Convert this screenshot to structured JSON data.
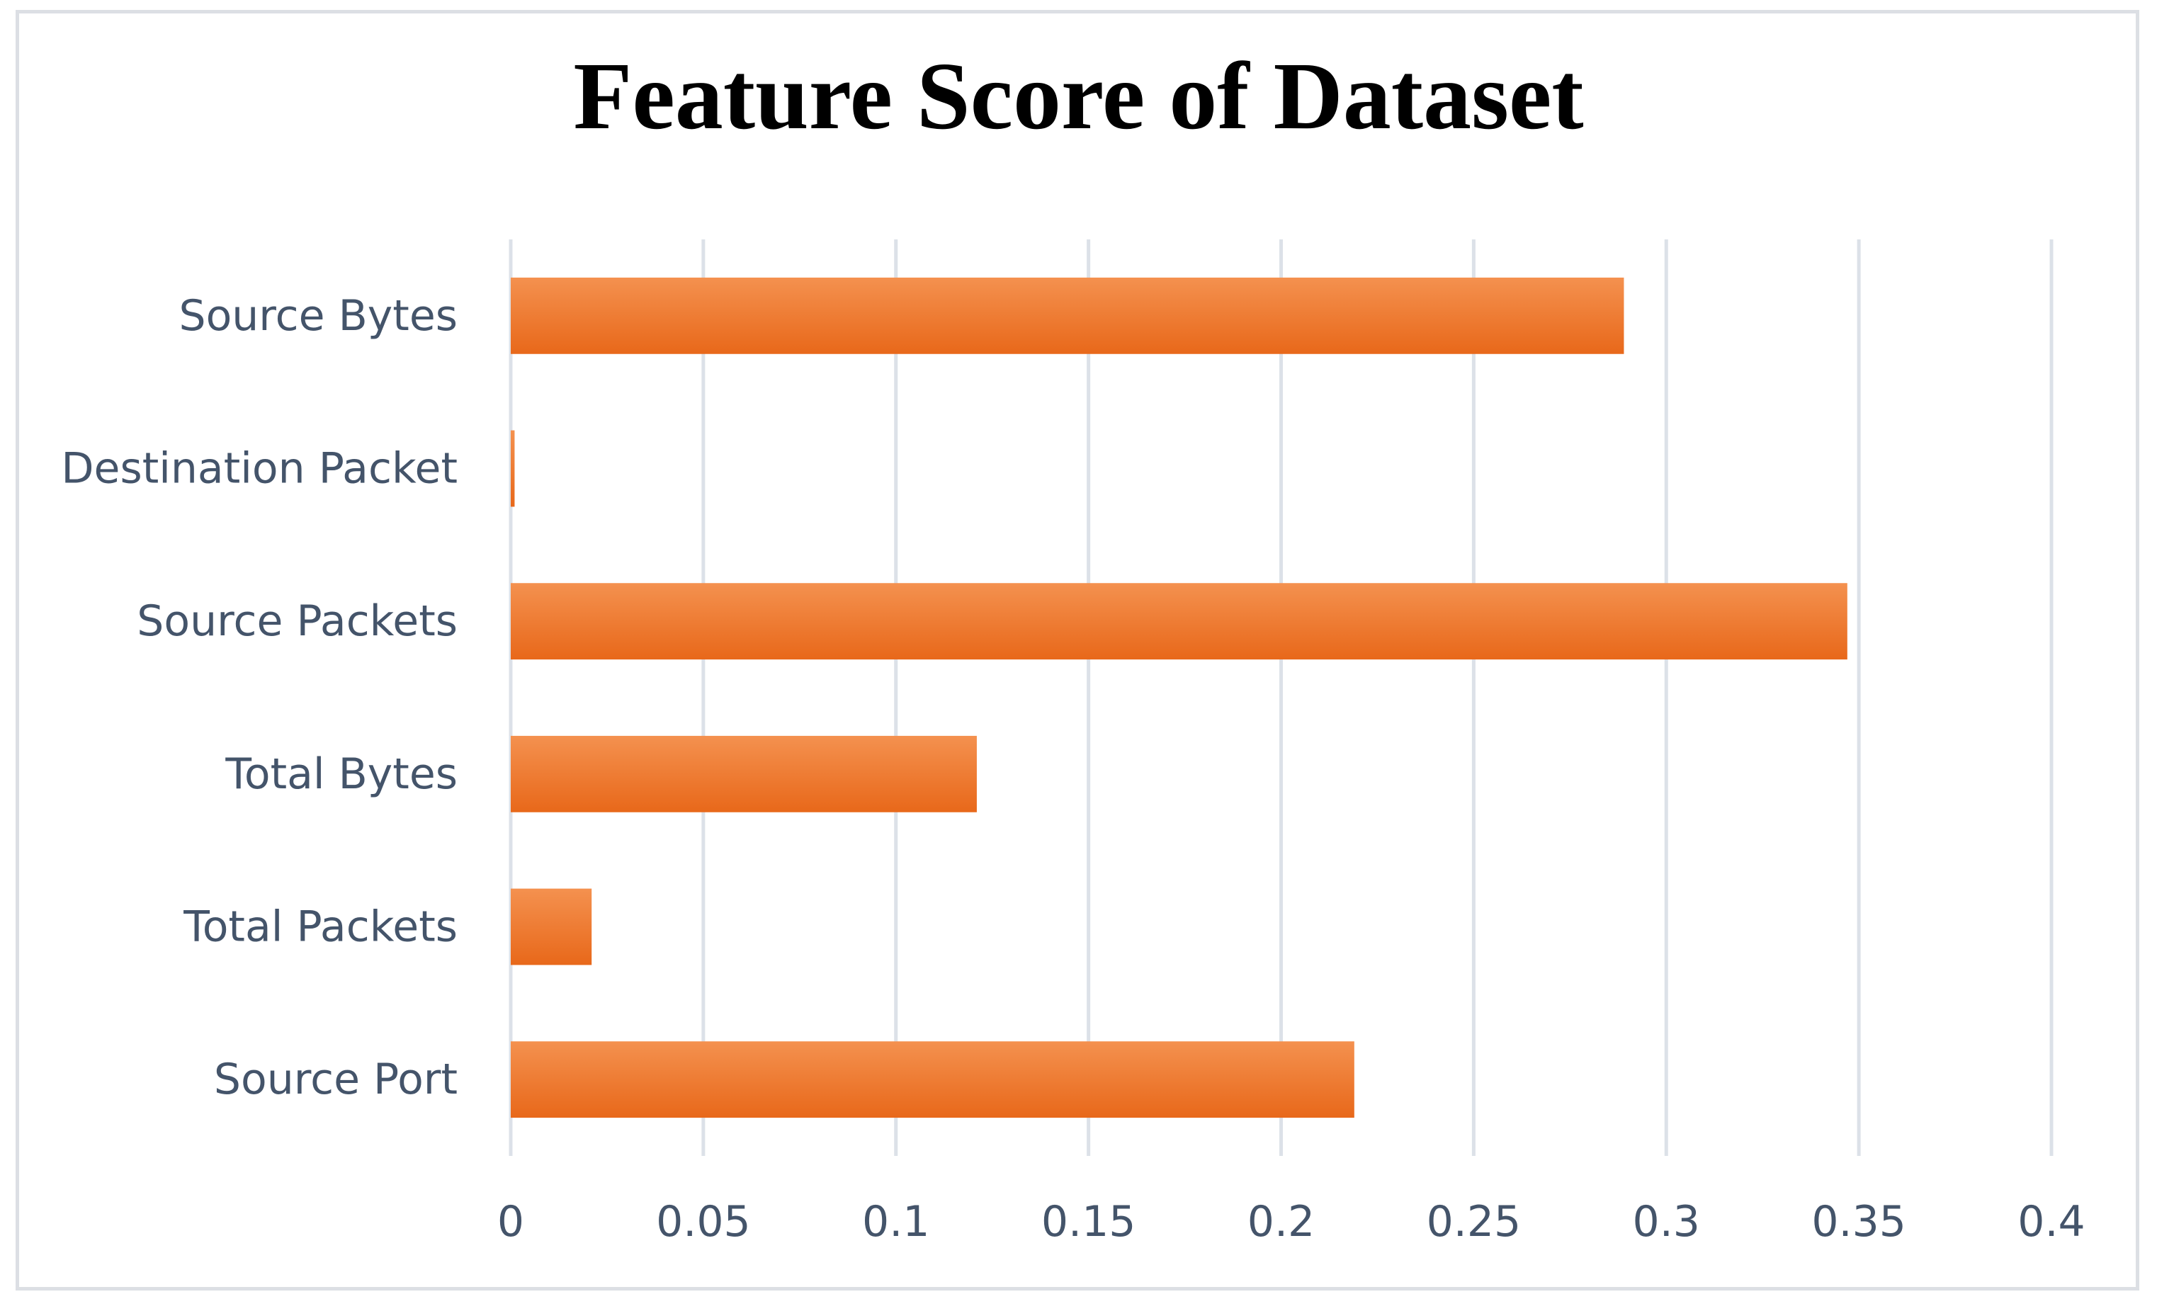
{
  "chart_data": {
    "type": "bar",
    "orientation": "horizontal",
    "title": "Feature Score of Dataset",
    "xlabel": "",
    "ylabel": "",
    "categories": [
      "Source Bytes",
      "Destination Packet",
      "Source Packets",
      "Total Bytes",
      "Total Packets",
      "Source Port"
    ],
    "values": [
      0.289,
      0.001,
      0.347,
      0.121,
      0.021,
      0.219
    ],
    "xlim": [
      0,
      0.4
    ],
    "x_ticks": [
      "0",
      "0.05",
      "0.1",
      "0.15",
      "0.2",
      "0.25",
      "0.3",
      "0.35",
      "0.4"
    ],
    "x_tick_values": [
      0,
      0.05,
      0.1,
      0.15,
      0.2,
      0.25,
      0.3,
      0.35,
      0.4
    ],
    "grid": true,
    "legend": "none",
    "colors": {
      "bar_top": "#f4914f",
      "bar_bottom": "#e8681a",
      "gridline": "#dce1e8",
      "label": "#44546a",
      "border": "#dcdfe4"
    }
  }
}
